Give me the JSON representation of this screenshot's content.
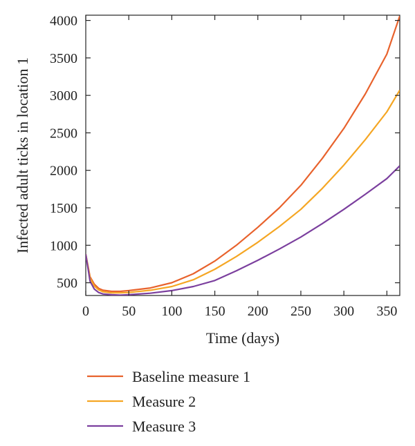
{
  "chart_data": {
    "type": "line",
    "title": "",
    "xlabel": "Time (days)",
    "ylabel": "Infected adult ticks in location 1",
    "xlim": [
      0,
      365
    ],
    "ylim": [
      330,
      4070
    ],
    "xticks": [
      0,
      50,
      100,
      150,
      200,
      250,
      300,
      350
    ],
    "yticks": [
      500,
      1000,
      1500,
      2000,
      2500,
      3000,
      3500,
      4000
    ],
    "grid": false,
    "legend_position": "bottom",
    "series": [
      {
        "name": "Baseline measure 1",
        "color": "#e8622c",
        "x": [
          0,
          5,
          10,
          15,
          20,
          30,
          40,
          50,
          75,
          100,
          125,
          150,
          175,
          200,
          225,
          250,
          275,
          300,
          325,
          350,
          365
        ],
        "y": [
          880,
          580,
          480,
          425,
          400,
          385,
          385,
          395,
          430,
          500,
          620,
          790,
          1000,
          1240,
          1500,
          1800,
          2160,
          2560,
          3020,
          3550,
          4060
        ]
      },
      {
        "name": "Measure 2",
        "color": "#f5a623",
        "x": [
          0,
          5,
          10,
          15,
          20,
          30,
          40,
          50,
          75,
          100,
          125,
          150,
          175,
          200,
          225,
          250,
          275,
          300,
          325,
          350,
          365
        ],
        "y": [
          880,
          560,
          455,
          405,
          380,
          365,
          365,
          370,
          400,
          450,
          540,
          680,
          850,
          1040,
          1250,
          1480,
          1760,
          2070,
          2410,
          2780,
          3070
        ]
      },
      {
        "name": "Measure 3",
        "color": "#7b3f9e",
        "x": [
          0,
          5,
          10,
          15,
          20,
          30,
          40,
          50,
          75,
          100,
          125,
          150,
          175,
          200,
          225,
          250,
          275,
          300,
          325,
          350,
          365
        ],
        "y": [
          880,
          520,
          415,
          370,
          350,
          340,
          335,
          340,
          360,
          395,
          450,
          530,
          660,
          800,
          950,
          1110,
          1290,
          1480,
          1680,
          1890,
          2060
        ]
      }
    ]
  }
}
